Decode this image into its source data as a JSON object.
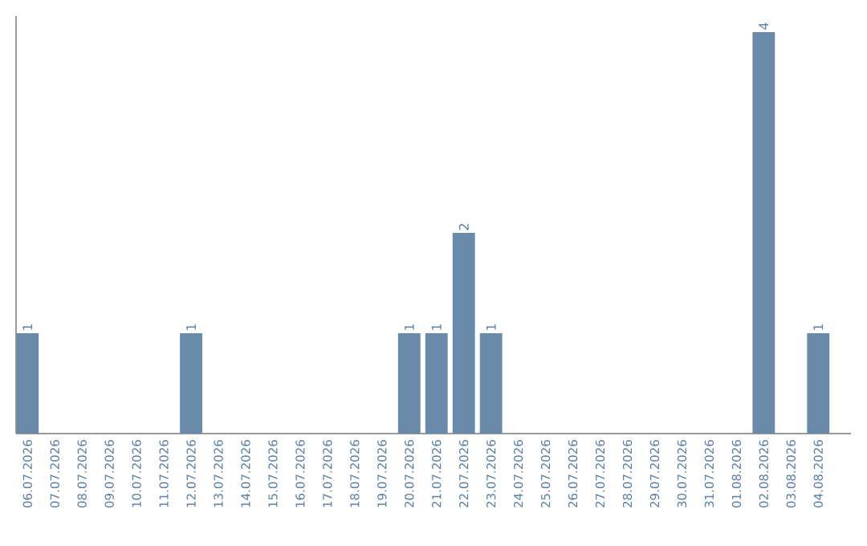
{
  "chart_data": {
    "type": "bar",
    "color": "#6a8aaa",
    "categories": [
      "06.07.2026",
      "07.07.2026",
      "08.07.2026",
      "09.07.2026",
      "10.07.2026",
      "11.07.2026",
      "12.07.2026",
      "13.07.2026",
      "14.07.2026",
      "15.07.2026",
      "16.07.2026",
      "17.07.2026",
      "18.07.2026",
      "19.07.2026",
      "20.07.2026",
      "21.07.2026",
      "22.07.2026",
      "23.07.2026",
      "24.07.2026",
      "25.07.2026",
      "26.07.2026",
      "27.07.2026",
      "28.07.2026",
      "29.07.2026",
      "30.07.2026",
      "31.07.2026",
      "01.08.2026",
      "02.08.2026",
      "03.08.2026",
      "04.08.2026"
    ],
    "values": [
      1,
      0,
      0,
      0,
      0,
      0,
      1,
      0,
      0,
      0,
      0,
      0,
      0,
      0,
      1,
      1,
      2,
      1,
      0,
      0,
      0,
      0,
      0,
      0,
      0,
      0,
      0,
      4,
      0,
      1
    ],
    "value_labels": [
      "1",
      null,
      null,
      null,
      null,
      null,
      "1",
      null,
      null,
      null,
      null,
      null,
      null,
      null,
      "1",
      "1",
      "2",
      "1",
      null,
      null,
      null,
      null,
      null,
      null,
      null,
      null,
      null,
      "4",
      null,
      "1"
    ]
  }
}
